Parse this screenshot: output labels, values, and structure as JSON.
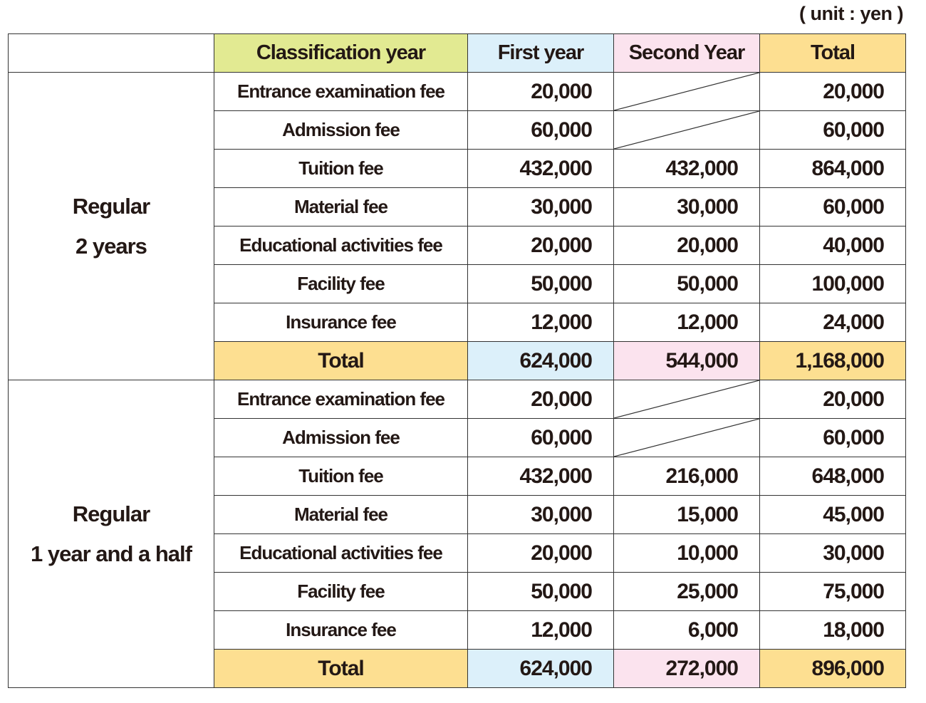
{
  "unit_label": "( unit : yen )",
  "header": {
    "classification": "Classification year",
    "first_year": "First year",
    "second_year": "Second Year",
    "total": "Total"
  },
  "colors": {
    "classification": "#e2ea92",
    "first_year": "#dcf0fa",
    "second_year": "#fbe3ee",
    "total": "#fddf91"
  },
  "groups": [
    {
      "name_line1": "Regular",
      "name_line2": "2  years",
      "rows": [
        {
          "fee": "Entrance examination fee",
          "first": "20,000",
          "second": null,
          "total": "20,000"
        },
        {
          "fee": "Admission fee",
          "first": "60,000",
          "second": null,
          "total": "60,000"
        },
        {
          "fee": "Tuition fee",
          "first": "432,000",
          "second": "432,000",
          "total": "864,000"
        },
        {
          "fee": "Material fee",
          "first": "30,000",
          "second": "30,000",
          "total": "60,000"
        },
        {
          "fee": "Educational activities fee",
          "first": "20,000",
          "second": "20,000",
          "total": "40,000"
        },
        {
          "fee": "Facility fee",
          "first": "50,000",
          "second": "50,000",
          "total": "100,000"
        },
        {
          "fee": "Insurance fee",
          "first": "12,000",
          "second": "12,000",
          "total": "24,000"
        }
      ],
      "total": {
        "label": "Total",
        "first": "624,000",
        "second": "544,000",
        "total": "1,168,000"
      }
    },
    {
      "name_line1": "Regular",
      "name_line2": "1  year and a half",
      "rows": [
        {
          "fee": "Entrance examination fee",
          "first": "20,000",
          "second": null,
          "total": "20,000"
        },
        {
          "fee": "Admission fee",
          "first": "60,000",
          "second": null,
          "total": "60,000"
        },
        {
          "fee": "Tuition fee",
          "first": "432,000",
          "second": "216,000",
          "total": "648,000"
        },
        {
          "fee": "Material fee",
          "first": "30,000",
          "second": "15,000",
          "total": "45,000"
        },
        {
          "fee": "Educational activities fee",
          "first": "20,000",
          "second": "10,000",
          "total": "30,000"
        },
        {
          "fee": "Facility fee",
          "first": "50,000",
          "second": "25,000",
          "total": "75,000"
        },
        {
          "fee": "Insurance fee",
          "first": "12,000",
          "second": "6,000",
          "total": "18,000"
        }
      ],
      "total": {
        "label": "Total",
        "first": "624,000",
        "second": "272,000",
        "total": "896,000"
      }
    }
  ]
}
